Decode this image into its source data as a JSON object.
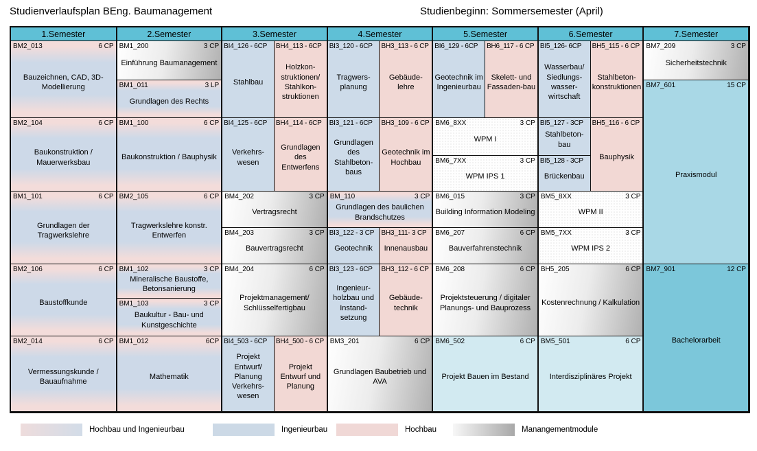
{
  "title_left": "Studienverlaufsplan BEng. Baumanagement",
  "title_right": "Studienbeginn: Sommersemester (April)",
  "semesters": [
    "1.Semester",
    "2.Semester",
    "3.Semester",
    "4.Semester",
    "5.Semester",
    "6.Semester",
    "7.Semester"
  ],
  "colors": {
    "header_teal": "#5fc0d6",
    "ingenieurbau_blue": "#cddbe9",
    "hochbau_pink": "#f2d8d4",
    "management_gray_from": "#ffffff",
    "management_gray_to": "#b0b0b0",
    "projekt_cyan": "#d2eaf1",
    "praxismodul_cyan": "#a9d8e6",
    "bachelor_cyan": "#7cc7da"
  },
  "legend": [
    {
      "label": "Hochbau und Ingenieurbau",
      "type": "hi"
    },
    {
      "label": "Ingenieurbau",
      "type": "i"
    },
    {
      "label": "Hochbau",
      "type": "h"
    },
    {
      "label": "Manangementmodule",
      "type": "m"
    }
  ],
  "cells": [
    {
      "code": "BM2_013",
      "cp": "6 CP",
      "label": "Bauzeichnen, CAD, 3D-Modellierung",
      "type": "hi",
      "sem": 1,
      "side": "full",
      "row": 2,
      "rowspan": 2
    },
    {
      "code": "BM2_104",
      "cp": "6 CP",
      "label": "Baukonstruktion / Mauerwerksbau",
      "type": "hi",
      "sem": 1,
      "side": "full",
      "row": 4,
      "rowspan": 2
    },
    {
      "code": "BM1_101",
      "cp": "6 CP",
      "label": "Grundlagen der Tragwerkslehre",
      "type": "hi",
      "sem": 1,
      "side": "full",
      "row": 6,
      "rowspan": 2
    },
    {
      "code": "BM2_106",
      "cp": "6 CP",
      "label": "Baustoffkunde",
      "type": "hi",
      "sem": 1,
      "side": "full",
      "row": 8,
      "rowspan": 2
    },
    {
      "code": "BM2_014",
      "cp": "6 CP",
      "label": "Vermessungskunde / Bauaufnahme",
      "type": "hi",
      "sem": 1,
      "side": "full",
      "row": 10,
      "rowspan": 1
    },
    {
      "code": "BM1_200",
      "cp": "3 CP",
      "label": "Einführung Baumanagement",
      "type": "m",
      "sem": 2,
      "side": "full",
      "row": 2,
      "rowspan": 1
    },
    {
      "code": "BM1_011",
      "cp": "3 LP",
      "label": "Grundlagen des Rechts",
      "type": "hi",
      "sem": 2,
      "side": "full",
      "row": 3,
      "rowspan": 1
    },
    {
      "code": "BM1_100",
      "cp": "6 CP",
      "label": "Baukonstruktion / Bauphysik",
      "type": "hi",
      "sem": 2,
      "side": "full",
      "row": 4,
      "rowspan": 2
    },
    {
      "code": "BM2_105",
      "cp": "6 CP",
      "label": "Tragwerkslehre konstr. Entwerfen",
      "type": "hi",
      "sem": 2,
      "side": "full",
      "row": 6,
      "rowspan": 2
    },
    {
      "code": "BM1_102",
      "cp": "3 CP",
      "label": "Mineralische Baustoffe, Betonsanierung",
      "type": "hi",
      "sem": 2,
      "side": "full",
      "row": 8,
      "rowspan": 1
    },
    {
      "code": "BM1_103",
      "cp": "3 CP",
      "label": "Baukultur - Bau- und Kunstgeschichte",
      "type": "hi",
      "sem": 2,
      "side": "full",
      "row": 9,
      "rowspan": 1
    },
    {
      "code": "BM1_012",
      "cp": "6CP",
      "label": "Mathematik",
      "type": "hi",
      "sem": 2,
      "side": "full",
      "row": 10,
      "rowspan": 1
    },
    {
      "code": "BI4_126 - 6CP",
      "cp": "",
      "label": "Stahlbau",
      "type": "i",
      "sem": 3,
      "side": "L",
      "row": 2,
      "rowspan": 2
    },
    {
      "code": "BH4_113 - 6CP",
      "cp": "",
      "label": "Holzkon­struktionen/ Stahlkon­struktionen",
      "type": "h",
      "sem": 3,
      "side": "R",
      "row": 2,
      "rowspan": 2
    },
    {
      "code": "BI4_125 - 6CP",
      "cp": "",
      "label": "Verkehrs­wesen",
      "type": "i",
      "sem": 3,
      "side": "L",
      "row": 4,
      "rowspan": 2
    },
    {
      "code": "BH4_114 - 6CP",
      "cp": "",
      "label": "Grundlagen des Entwerfens",
      "type": "h",
      "sem": 3,
      "side": "R",
      "row": 4,
      "rowspan": 2
    },
    {
      "code": "BM4_202",
      "cp": "3 CP",
      "label": "Vertragsrecht",
      "type": "m",
      "sem": 3,
      "side": "full",
      "row": 6,
      "rowspan": 1
    },
    {
      "code": "BM4_203",
      "cp": "3 CP",
      "label": "Bauvertragsrecht",
      "type": "m",
      "sem": 3,
      "side": "full",
      "row": 7,
      "rowspan": 1
    },
    {
      "code": "BM4_204",
      "cp": "6 CP",
      "label": "Projektmanagement/ Schlüsselfertigbau",
      "type": "m",
      "sem": 3,
      "side": "full",
      "row": 8,
      "rowspan": 2
    },
    {
      "code": "BI4_503 - 6CP",
      "cp": "",
      "label": "Projekt Entwurf/ Planung Verkehrs­wesen",
      "type": "i",
      "sem": 3,
      "side": "L",
      "row": 10,
      "rowspan": 1
    },
    {
      "code": "BH4_500 - 6 CP",
      "cp": "",
      "label": "Projekt Entwurf und Planung",
      "type": "h",
      "sem": 3,
      "side": "R",
      "row": 10,
      "rowspan": 1
    },
    {
      "code": "BI3_120 - 6CP",
      "cp": "",
      "label": "Tragwers­planung",
      "type": "i",
      "sem": 4,
      "side": "L",
      "row": 2,
      "rowspan": 2
    },
    {
      "code": "BH3_113 - 6 CP",
      "cp": "",
      "label": "Gebäude-lehre",
      "type": "h",
      "sem": 4,
      "side": "R",
      "row": 2,
      "rowspan": 2
    },
    {
      "code": "BI3_121 - 6CP",
      "cp": "",
      "label": "Grundlagen des Stahlbeton­baus",
      "type": "i",
      "sem": 4,
      "side": "L",
      "row": 4,
      "rowspan": 2
    },
    {
      "code": "BH3_109 - 6 CP",
      "cp": "",
      "label": "Geotechnik im Hochbau",
      "type": "h",
      "sem": 4,
      "side": "R",
      "row": 4,
      "rowspan": 2
    },
    {
      "code": "BM_110",
      "cp": "3 CP",
      "label": "Grundlagen des baulichen Brandschutzes",
      "type": "hi",
      "sem": 4,
      "side": "full",
      "row": 6,
      "rowspan": 1
    },
    {
      "code": "BI3_122 - 3 CP",
      "cp": "",
      "label": "Geotechnik",
      "type": "i",
      "sem": 4,
      "side": "L",
      "row": 7,
      "rowspan": 1
    },
    {
      "code": "BH3_111- 3 CP",
      "cp": "",
      "label": "Innenausbau",
      "type": "h",
      "sem": 4,
      "side": "R",
      "row": 7,
      "rowspan": 1
    },
    {
      "code": "BI3_123 - 6CP",
      "cp": "",
      "label": "Ingenieur­holzbau und Instand­setzung",
      "type": "i",
      "sem": 4,
      "side": "L",
      "row": 8,
      "rowspan": 2
    },
    {
      "code": "BH3_112 - 6 CP",
      "cp": "",
      "label": "Gebäude­technik",
      "type": "h",
      "sem": 4,
      "side": "R",
      "row": 8,
      "rowspan": 2
    },
    {
      "code": "BM3_201",
      "cp": "6 CP",
      "label": "Grundlagen Baubetrieb und AVA",
      "type": "m",
      "sem": 4,
      "side": "full",
      "row": 10,
      "rowspan": 1
    },
    {
      "code": "BI6_129 - 6CP",
      "cp": "",
      "label": "Geotechnik im Ingenieurbau",
      "type": "i",
      "sem": 5,
      "side": "L",
      "row": 2,
      "rowspan": 2
    },
    {
      "code": "BH6_117 - 6 CP",
      "cp": "",
      "label": "Skelett- und Fassaden-bau",
      "type": "h",
      "sem": 5,
      "side": "R",
      "row": 2,
      "rowspan": 2
    },
    {
      "code": "BM6_8XX",
      "cp": "3 CP",
      "label": "WPM I",
      "type": "w",
      "sem": 5,
      "side": "full",
      "row": 4,
      "rowspan": 1
    },
    {
      "code": "BM6_7XX",
      "cp": "3 CP",
      "label": "WPM IPS 1",
      "type": "w",
      "sem": 5,
      "side": "full",
      "row": 5,
      "rowspan": 1
    },
    {
      "code": "BM6_015",
      "cp": "3 CP",
      "label": "Building Information Modeling",
      "type": "m",
      "sem": 5,
      "side": "full",
      "row": 6,
      "rowspan": 1
    },
    {
      "code": "BM6_207",
      "cp": "6 CP",
      "label": "Bauverfahrenstechnik",
      "type": "m",
      "sem": 5,
      "side": "full",
      "row": 7,
      "rowspan": 1
    },
    {
      "code": "BM6_208",
      "cp": "6 CP",
      "label": "Projektsteuerung / digitaler Planungs- und Bauprozess",
      "type": "m",
      "sem": 5,
      "side": "full",
      "row": 8,
      "rowspan": 2
    },
    {
      "code": "BM6_502",
      "cp": "6 CP",
      "label": "Projekt Bauen im Bestand",
      "type": "p",
      "sem": 5,
      "side": "full",
      "row": 10,
      "rowspan": 1
    },
    {
      "code": "BI5_126- 6CP",
      "cp": "",
      "label": "Wasserbau/ Siedlungs­wasser­wirtschaft",
      "type": "i",
      "sem": 6,
      "side": "L",
      "row": 2,
      "rowspan": 2
    },
    {
      "code": "BH5_115 - 6 CP",
      "cp": "",
      "label": "Stahlbeton­konstrukt­ionen",
      "type": "h",
      "sem": 6,
      "side": "R",
      "row": 2,
      "rowspan": 2
    },
    {
      "code": "BI5_127 - 3CP",
      "cp": "",
      "label": "Stahlbeton-bau",
      "type": "i",
      "sem": 6,
      "side": "L",
      "row": 4,
      "rowspan": 1
    },
    {
      "code": "BI5_128 - 3CP",
      "cp": "",
      "label": "Brückenbau",
      "type": "i",
      "sem": 6,
      "side": "L",
      "row": 5,
      "rowspan": 1
    },
    {
      "code": "BH5_116 - 6 CP",
      "cp": "",
      "label": "Bauphysik",
      "type": "h",
      "sem": 6,
      "side": "R",
      "row": 4,
      "rowspan": 2
    },
    {
      "code": "BM5_8XX",
      "cp": "3 CP",
      "label": "WPM II",
      "type": "w",
      "sem": 6,
      "side": "full",
      "row": 6,
      "rowspan": 1
    },
    {
      "code": "BM5_7XX",
      "cp": "3 CP",
      "label": "WPM IPS 2",
      "type": "w",
      "sem": 6,
      "side": "full",
      "row": 7,
      "rowspan": 1
    },
    {
      "code": "BH5_205",
      "cp": "6 CP",
      "label": "Kostenrechnung / Kalkulation",
      "type": "m",
      "sem": 6,
      "side": "full",
      "row": 8,
      "rowspan": 2
    },
    {
      "code": "BM5_501",
      "cp": "6 CP",
      "label": "Interdisziplinäres Projekt",
      "type": "p",
      "sem": 6,
      "side": "full",
      "row": 10,
      "rowspan": 1
    },
    {
      "code": "BM7_209",
      "cp": "3 CP",
      "label": "Sicherheitstechnik",
      "type": "m",
      "sem": 7,
      "side": "full",
      "row": 2,
      "rowspan": 1
    },
    {
      "code": "BM7_601",
      "cp": "15 CP",
      "label": "Praxismodul",
      "type": "prax",
      "sem": 7,
      "side": "full",
      "row": 3,
      "rowspan": 5
    },
    {
      "code": "BM7_901",
      "cp": "12 CP",
      "label": "Bachelorarbeit",
      "type": "ba",
      "sem": 7,
      "side": "full",
      "row": 8,
      "rowspan": 3
    }
  ]
}
